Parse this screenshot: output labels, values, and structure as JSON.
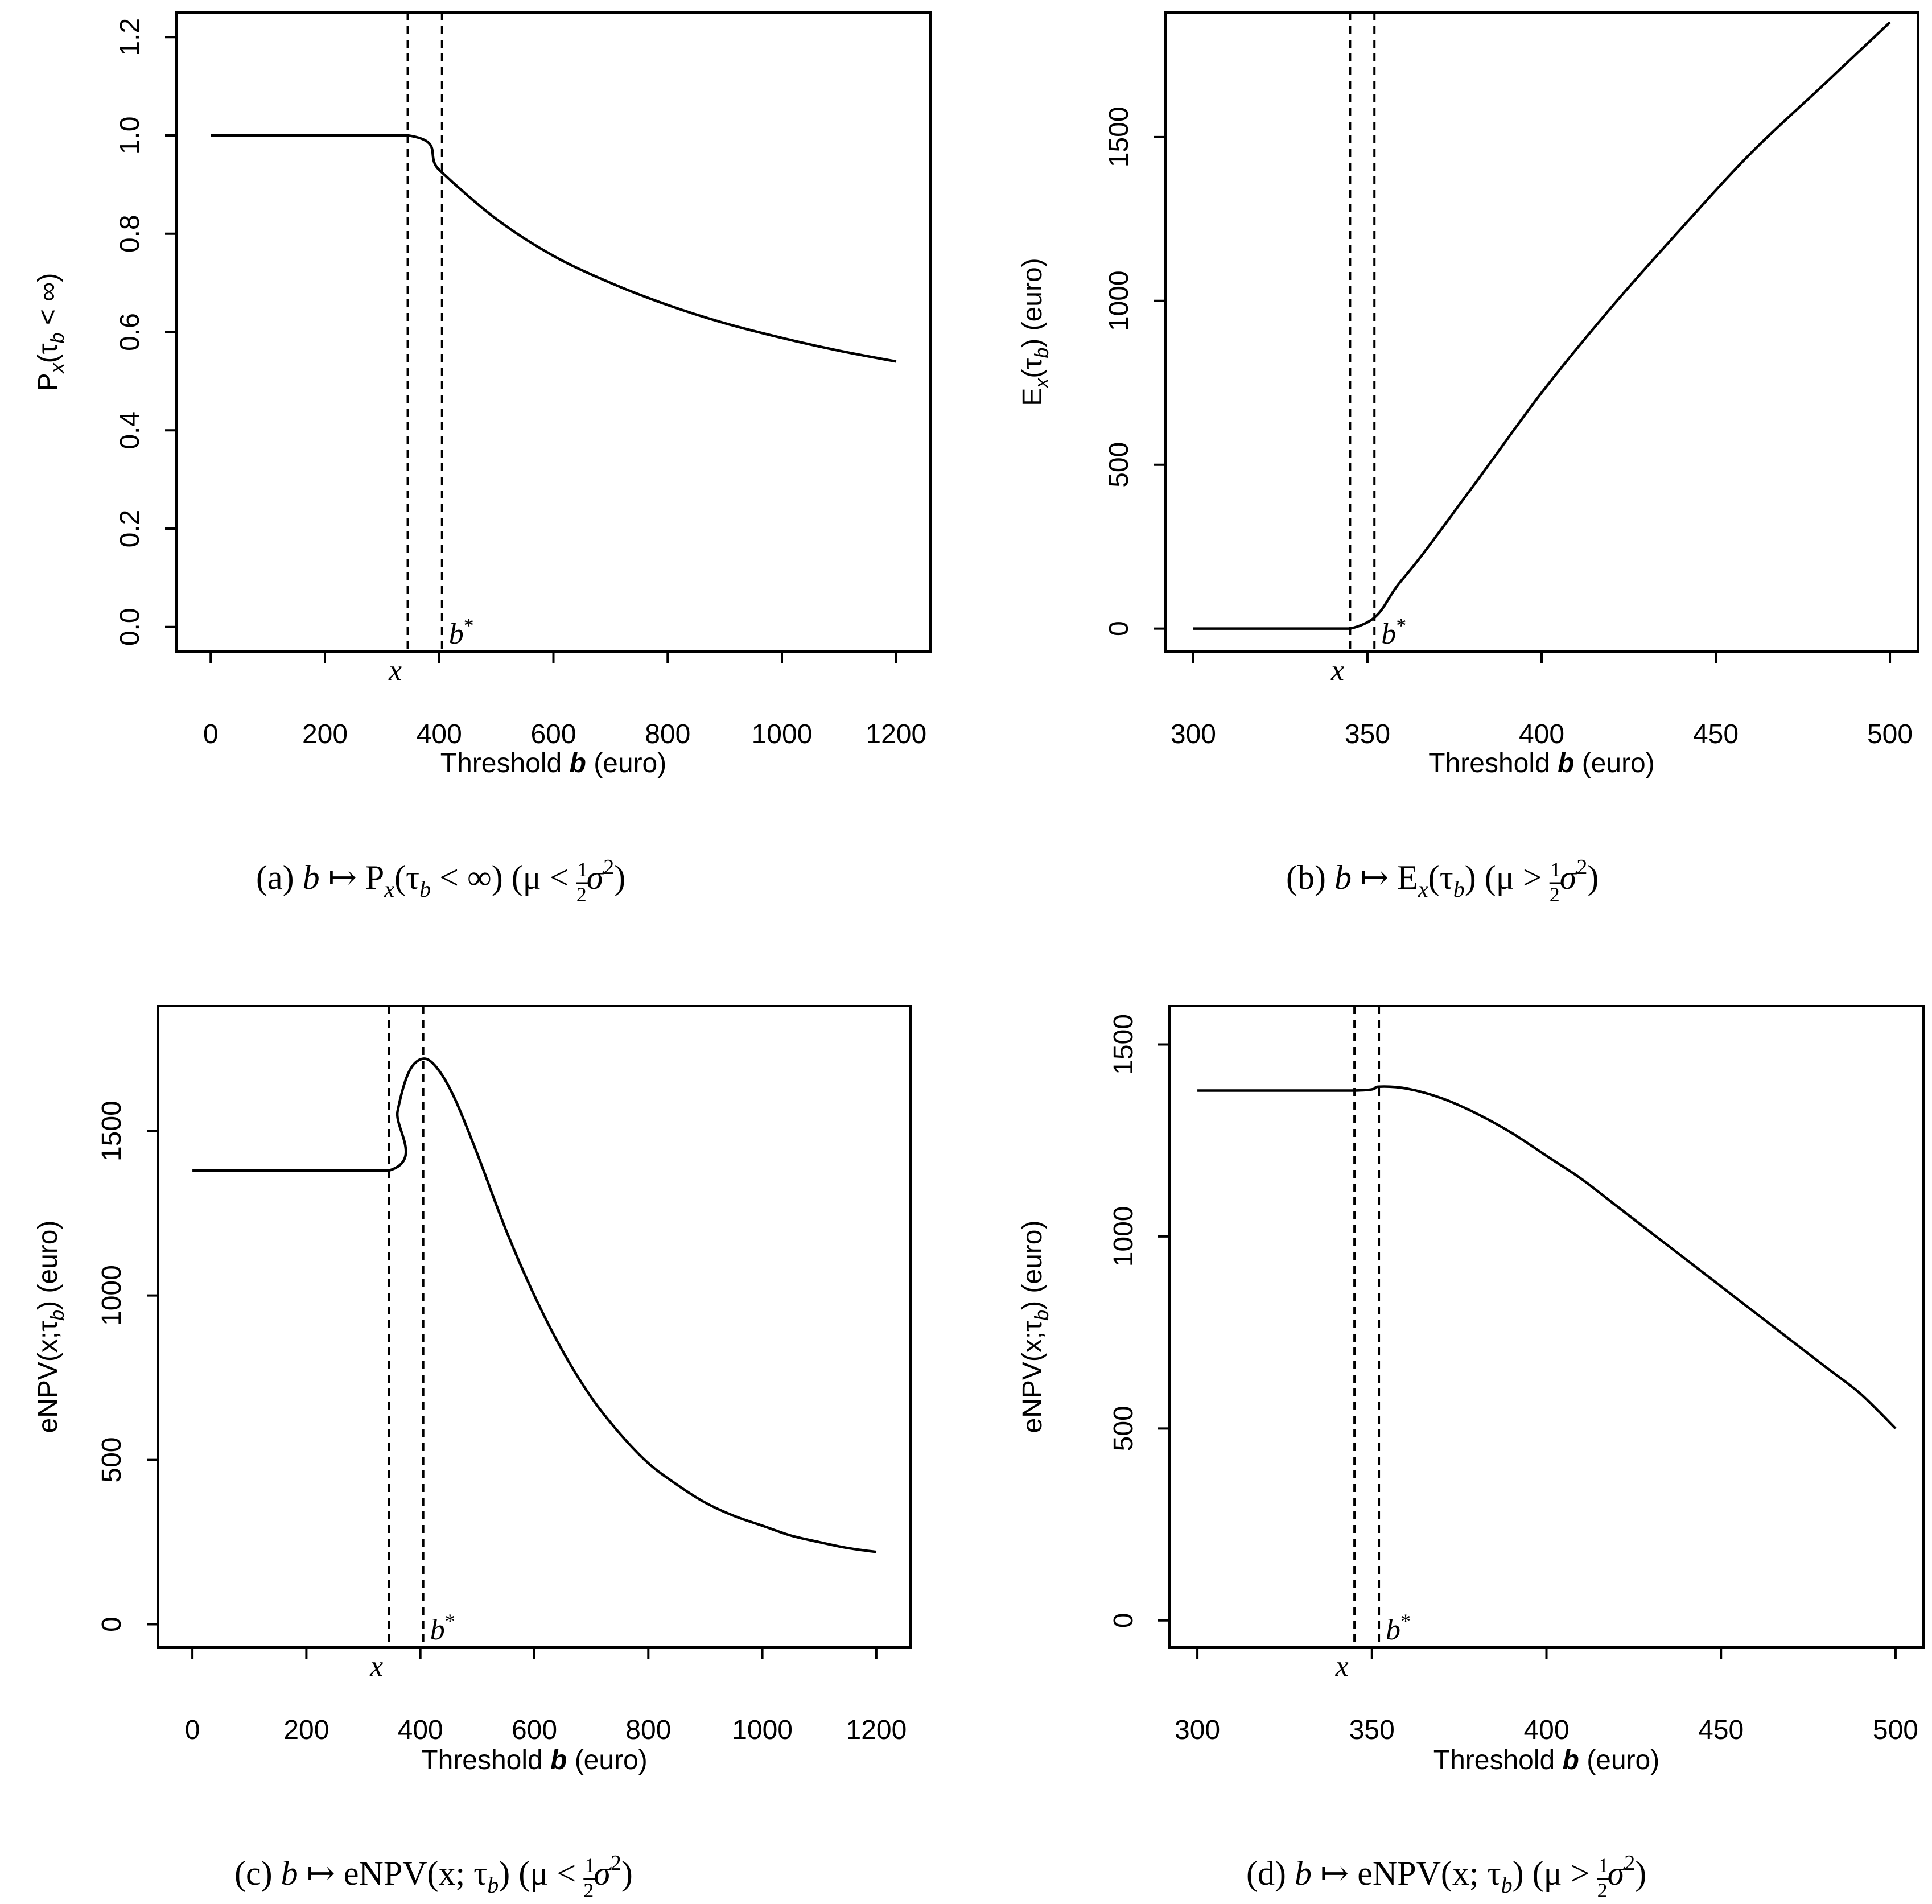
{
  "chart_data": [
    {
      "id": "a",
      "type": "line",
      "title": "",
      "xlabel": "Threshold b (euro)",
      "ylabel": "P_x(τ_b < ∞)",
      "xlim": [
        -60,
        1260
      ],
      "ylim": [
        -0.05,
        1.25
      ],
      "xticks": [
        0,
        200,
        400,
        600,
        800,
        1000,
        1200
      ],
      "yticks": [
        0.0,
        0.2,
        0.4,
        0.6,
        0.8,
        1.0,
        1.2
      ],
      "yticklabels": [
        "0.0",
        "0.2",
        "0.4",
        "0.6",
        "0.8",
        "1.0",
        "1.2"
      ],
      "x_marker": {
        "label": "x",
        "value": 345
      },
      "b_marker": {
        "label": "b*",
        "value": 405
      },
      "series": [
        {
          "name": "P_x(τ_b < ∞)",
          "x": [
            0,
            345,
            400,
            500,
            600,
            700,
            800,
            900,
            1000,
            1100,
            1200
          ],
          "y": [
            1.0,
            1.0,
            0.93,
            0.83,
            0.755,
            0.7,
            0.655,
            0.618,
            0.588,
            0.562,
            0.54
          ]
        }
      ],
      "caption": {
        "letter": "(a)",
        "body": "b ↦ P",
        "x_sub": "x",
        "mid": "(τ",
        "b_sub": "b",
        "tail": " < ∞) (μ < ",
        "rel": "<"
      }
    },
    {
      "id": "b",
      "type": "line",
      "title": "",
      "xlabel": "Threshold b (euro)",
      "ylabel": "E_x(τ_b) (euro)",
      "xlim": [
        292,
        508
      ],
      "ylim": [
        -70,
        1880
      ],
      "xticks": [
        300,
        350,
        400,
        450,
        500
      ],
      "yticks": [
        0,
        500,
        1000,
        1500
      ],
      "yticklabels": [
        "0",
        "500",
        "1000",
        "1500"
      ],
      "x_marker": {
        "label": "x",
        "value": 345
      },
      "b_marker": {
        "label": "b*",
        "value": 352
      },
      "series": [
        {
          "name": "E_x(τ_b)",
          "x": [
            300,
            345,
            360,
            380,
            400,
            420,
            440,
            460,
            480,
            500
          ],
          "y": [
            0,
            0,
            150,
            430,
            720,
            980,
            1220,
            1450,
            1650,
            1850
          ]
        }
      ],
      "caption": {
        "letter": "(b)",
        "body": "b ↦ E",
        "x_sub": "x",
        "mid": "(τ",
        "b_sub": "b",
        "tail": ") (μ > ",
        "rel": ">"
      }
    },
    {
      "id": "c",
      "type": "line",
      "title": "",
      "xlabel": "Threshold b (euro)",
      "ylabel": "eNPV(x;τ_b) (euro)",
      "xlim": [
        -60,
        1260
      ],
      "ylim": [
        -70,
        1880
      ],
      "xticks": [
        0,
        200,
        400,
        600,
        800,
        1000,
        1200
      ],
      "yticks": [
        0,
        500,
        1000,
        1500
      ],
      "yticklabels": [
        "0",
        "500",
        "1000",
        "1500"
      ],
      "x_marker": {
        "label": "x",
        "value": 345
      },
      "b_marker": {
        "label": "b*",
        "value": 405
      },
      "series": [
        {
          "name": "eNPV(x;τ_b)",
          "x": [
            0,
            345,
            360,
            380,
            405,
            430,
            460,
            500,
            550,
            600,
            650,
            700,
            750,
            800,
            850,
            900,
            950,
            1000,
            1050,
            1100,
            1150,
            1200
          ],
          "y": [
            1380,
            1380,
            1560,
            1680,
            1720,
            1690,
            1600,
            1430,
            1200,
            1000,
            830,
            690,
            580,
            490,
            425,
            370,
            330,
            300,
            270,
            250,
            232,
            220
          ]
        }
      ],
      "caption": {
        "letter": "(c)",
        "body": "b ↦ eNPV(x; τ",
        "b_sub": "b",
        "tail": ") (μ < ",
        "rel": "<"
      }
    },
    {
      "id": "d",
      "type": "line",
      "title": "",
      "xlabel": "Threshold b (euro)",
      "ylabel": "eNPV(x;τ_b) (euro)",
      "xlim": [
        292,
        508
      ],
      "ylim": [
        -70,
        1600
      ],
      "xticks": [
        300,
        350,
        400,
        450,
        500
      ],
      "yticks": [
        0,
        500,
        1000,
        1500
      ],
      "yticklabels": [
        "0",
        "500",
        "1000",
        "1500"
      ],
      "x_marker": {
        "label": "x",
        "value": 345
      },
      "b_marker": {
        "label": "b*",
        "value": 352
      },
      "series": [
        {
          "name": "eNPV(x;τ_b)",
          "x": [
            300,
            345,
            352,
            360,
            370,
            380,
            390,
            400,
            410,
            420,
            430,
            440,
            450,
            460,
            470,
            480,
            490,
            500
          ],
          "y": [
            1380,
            1380,
            1390,
            1385,
            1360,
            1320,
            1270,
            1210,
            1150,
            1080,
            1010,
            940,
            870,
            800,
            730,
            660,
            590,
            500
          ]
        }
      ],
      "caption": {
        "letter": "(d)",
        "body": "b ↦ eNPV(x; τ",
        "b_sub": "b",
        "tail": ") (μ > ",
        "rel": ">"
      }
    }
  ],
  "caption_common": {
    "half_num": "1",
    "half_den": "2",
    "sigma": "σ",
    "sq": "2",
    "close": ")"
  }
}
